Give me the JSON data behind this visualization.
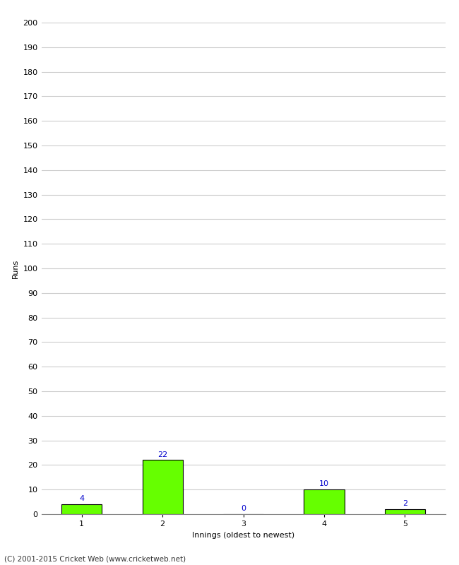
{
  "categories": [
    1,
    2,
    3,
    4,
    5
  ],
  "values": [
    4,
    22,
    0,
    10,
    2
  ],
  "bar_color": "#66ff00",
  "bar_edge_color": "#000000",
  "ylabel": "Runs",
  "xlabel": "Innings (oldest to newest)",
  "ylim": [
    0,
    200
  ],
  "yticks": [
    0,
    10,
    20,
    30,
    40,
    50,
    60,
    70,
    80,
    90,
    100,
    110,
    120,
    130,
    140,
    150,
    160,
    170,
    180,
    190,
    200
  ],
  "annotation_color": "#0000cc",
  "annotation_fontsize": 8,
  "background_color": "#ffffff",
  "grid_color": "#cccccc",
  "tick_label_fontsize": 8,
  "axis_label_fontsize": 8,
  "footer_text": "(C) 2001-2015 Cricket Web (www.cricketweb.net)",
  "footer_fontsize": 7.5,
  "bar_width": 0.5
}
